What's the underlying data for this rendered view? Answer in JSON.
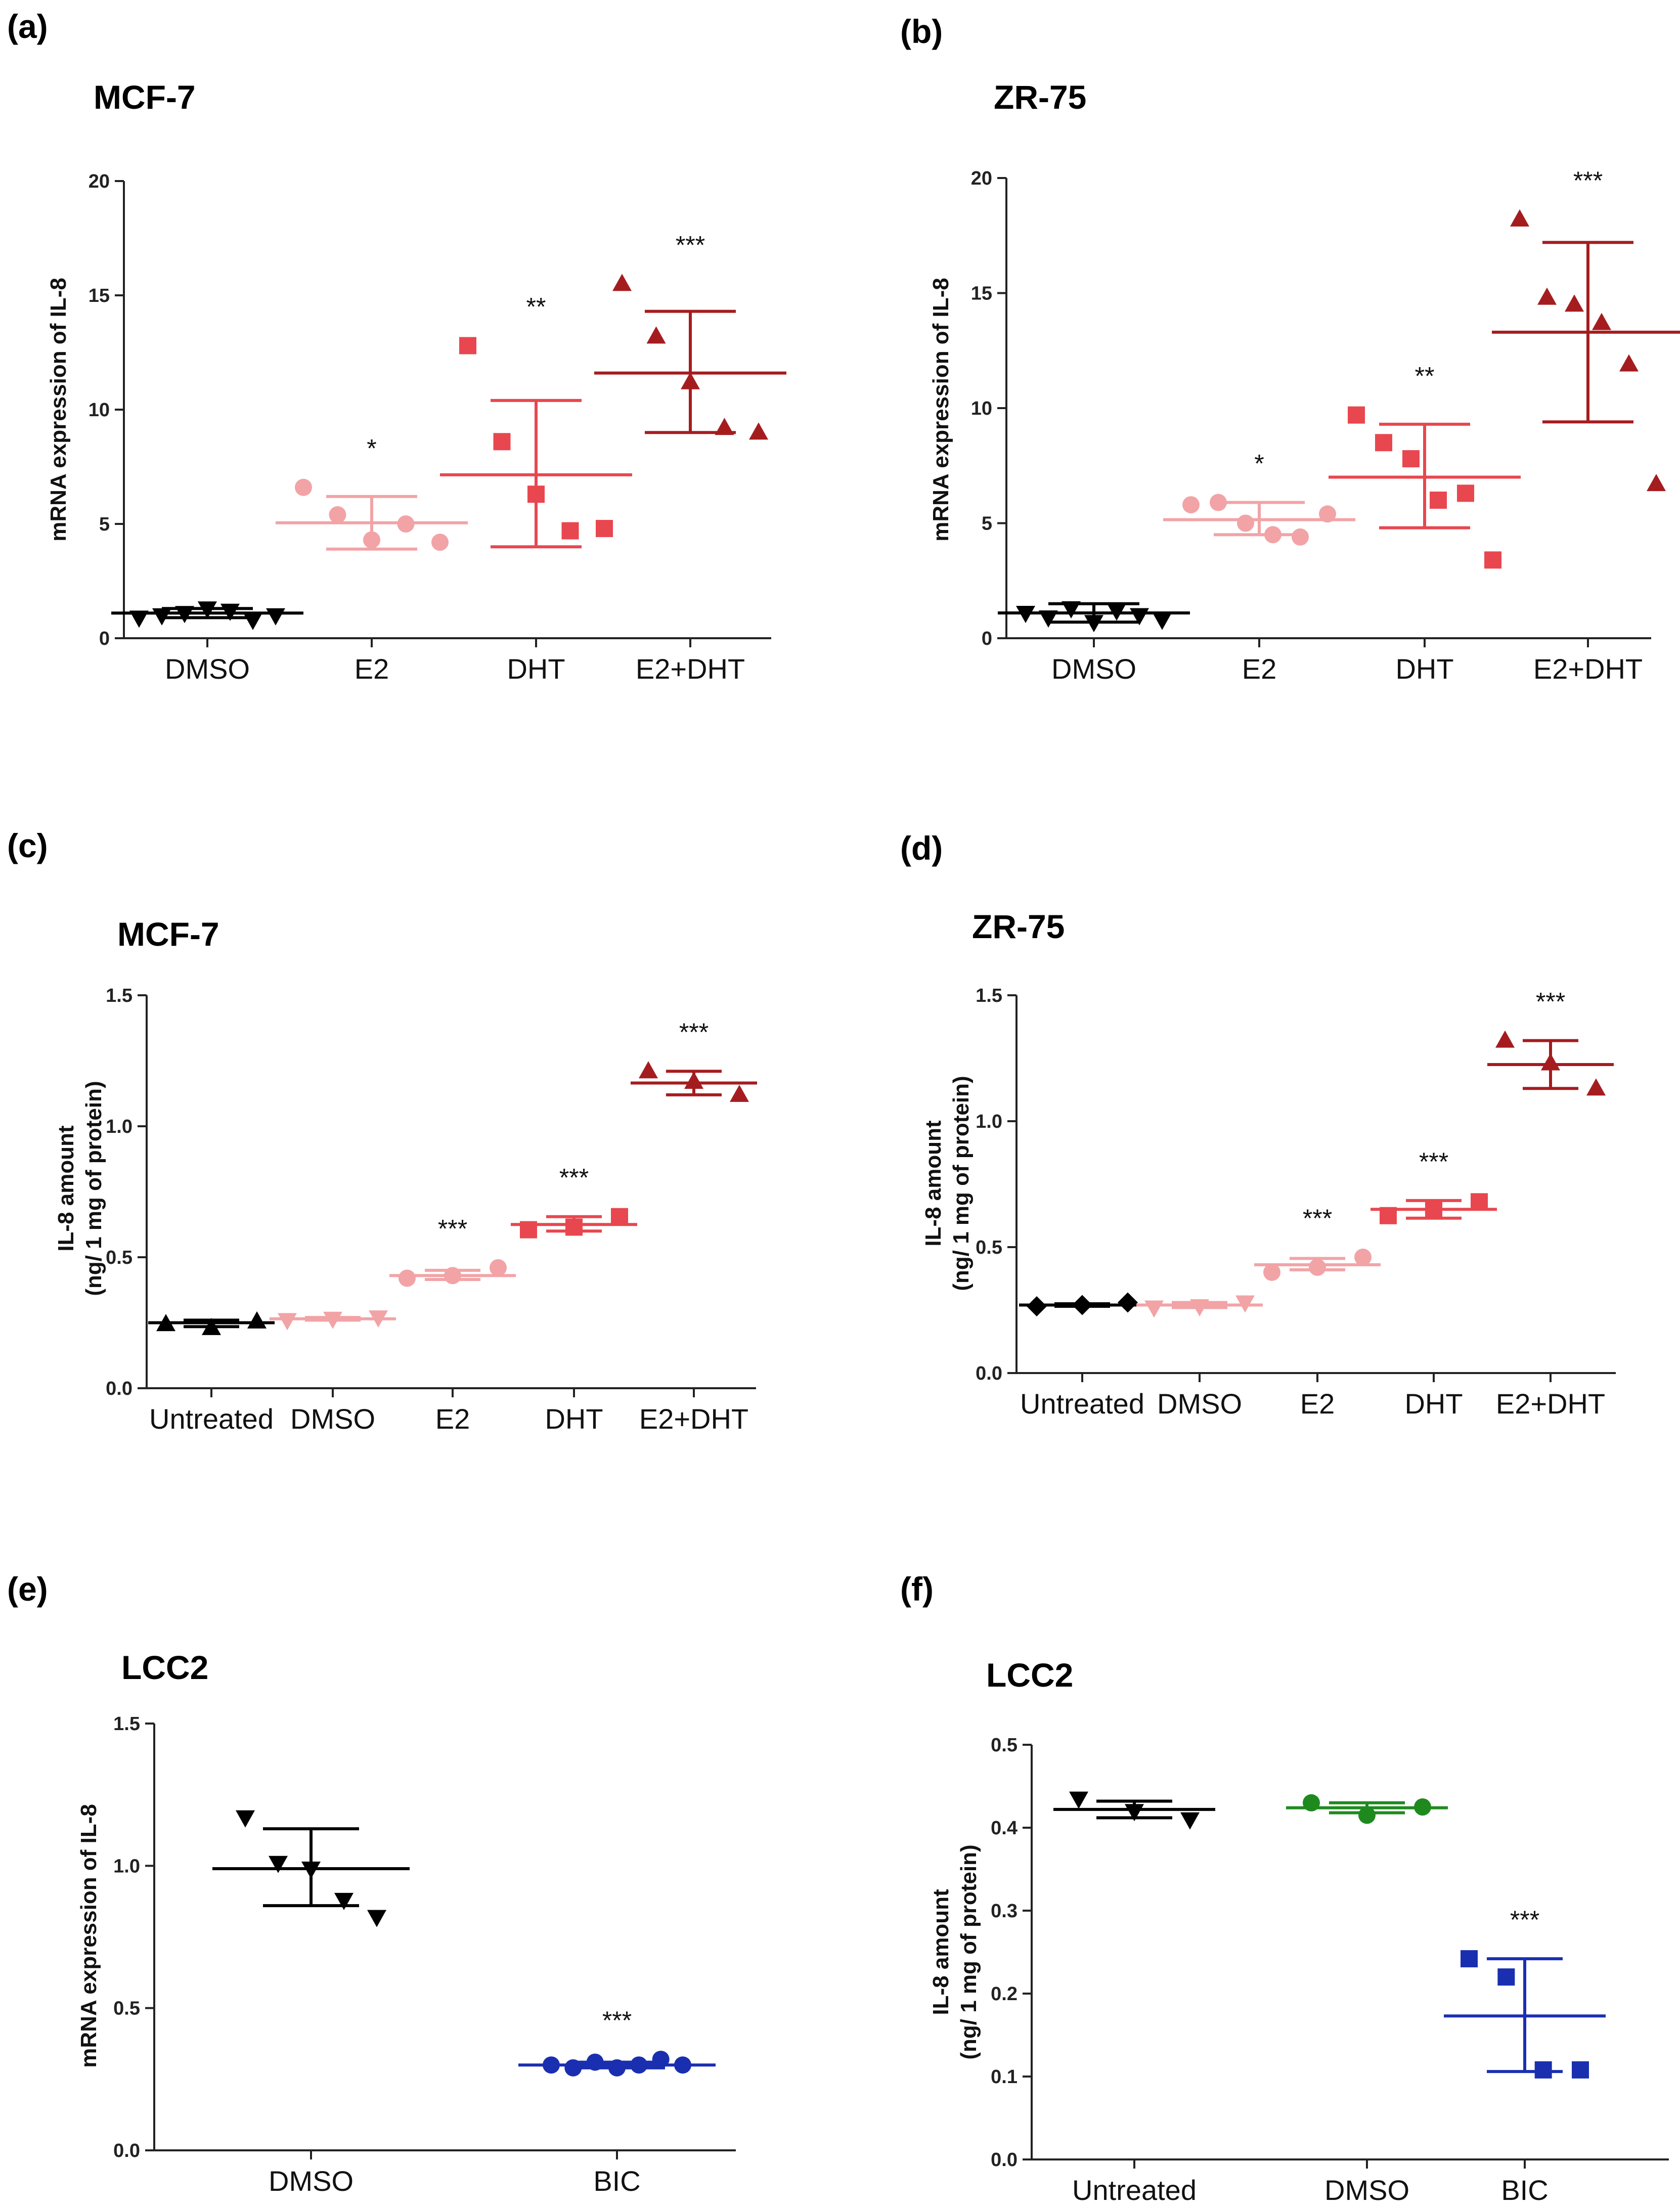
{
  "chart_data": [
    {
      "panel": "(a)",
      "type": "scatter",
      "title": "MCF-7",
      "ylabel": [
        "mRNA expression of IL-8"
      ],
      "ylim": [
        0,
        20
      ],
      "yticks": [
        0,
        5,
        10,
        15,
        20
      ],
      "categories": [
        "DMSO",
        "E2",
        "DHT",
        "E2+DHT"
      ],
      "groups": [
        {
          "name": "DMSO",
          "marker": "triangle-down",
          "color": "#000000",
          "points": [
            0.9,
            1.0,
            1.1,
            1.3,
            1.2,
            0.8,
            1.0
          ],
          "mean": 1.1,
          "upper": 1.3,
          "lower": 0.9,
          "sig": ""
        },
        {
          "name": "E2",
          "marker": "circle",
          "color": "#f2a3a6",
          "points": [
            6.6,
            5.4,
            4.3,
            5.0,
            4.2
          ],
          "mean": 5.05,
          "upper": 6.2,
          "lower": 3.9,
          "sig": "*"
        },
        {
          "name": "DHT",
          "marker": "square",
          "color": "#e8474f",
          "points": [
            12.8,
            8.6,
            6.3,
            4.7,
            4.8
          ],
          "mean": 7.15,
          "upper": 10.4,
          "lower": 4.0,
          "sig": "**"
        },
        {
          "name": "E2+DHT",
          "marker": "triangle-up",
          "color": "#a51c1f",
          "points": [
            15.5,
            13.2,
            11.2,
            9.2,
            9.0
          ],
          "mean": 11.6,
          "upper": 14.3,
          "lower": 9.0,
          "sig": "***"
        }
      ]
    },
    {
      "panel": "(b)",
      "type": "scatter",
      "title": "ZR-75",
      "ylabel": [
        "mRNA expression of IL-8"
      ],
      "ylim": [
        0,
        20
      ],
      "yticks": [
        0,
        5,
        10,
        15,
        20
      ],
      "categories": [
        "DMSO",
        "E2",
        "DHT",
        "E2+DHT"
      ],
      "groups": [
        {
          "name": "DMSO",
          "marker": "triangle-down",
          "color": "#000000",
          "points": [
            1.1,
            0.9,
            1.3,
            0.7,
            1.2,
            1.0,
            0.8
          ],
          "mean": 1.1,
          "upper": 1.5,
          "lower": 0.7,
          "sig": ""
        },
        {
          "name": "E2",
          "marker": "circle",
          "color": "#f2a3a6",
          "points": [
            5.8,
            5.9,
            5.0,
            4.5,
            4.4,
            5.4
          ],
          "mean": 5.15,
          "upper": 5.9,
          "lower": 4.5,
          "sig": "*"
        },
        {
          "name": "DHT",
          "marker": "square",
          "color": "#e8474f",
          "points": [
            9.7,
            8.5,
            7.8,
            6.0,
            6.3,
            3.4
          ],
          "mean": 7.0,
          "upper": 9.3,
          "lower": 4.8,
          "sig": "**"
        },
        {
          "name": "E2+DHT",
          "marker": "triangle-up",
          "color": "#a51c1f",
          "points": [
            18.2,
            14.8,
            14.5,
            13.7,
            11.9,
            6.7
          ],
          "mean": 13.3,
          "upper": 17.2,
          "lower": 9.4,
          "sig": "***"
        }
      ]
    },
    {
      "panel": "(c)",
      "type": "scatter",
      "title": "MCF-7",
      "ylabel": [
        "IL-8 amount",
        "(ng/ 1 mg of protein)"
      ],
      "ylim": [
        0,
        1.5
      ],
      "yticks": [
        0.0,
        0.5,
        1.0,
        1.5
      ],
      "tickDecimals": 1,
      "categories": [
        "Untreated",
        "DMSO",
        "E2",
        "DHT",
        "E2+DHT"
      ],
      "groups": [
        {
          "name": "Untreated",
          "marker": "triangle-up",
          "color": "#000000",
          "points": [
            0.245,
            0.23,
            0.255
          ],
          "mean": 0.25,
          "upper": 0.26,
          "lower": 0.235,
          "sig": ""
        },
        {
          "name": "DMSO",
          "marker": "triangle-down",
          "color": "#f2a3a6",
          "points": [
            0.26,
            0.265,
            0.27
          ],
          "mean": 0.265,
          "upper": 0.27,
          "lower": 0.26,
          "sig": ""
        },
        {
          "name": "E2",
          "marker": "circle",
          "color": "#f2a3a6",
          "points": [
            0.42,
            0.43,
            0.46
          ],
          "mean": 0.43,
          "upper": 0.45,
          "lower": 0.415,
          "sig": "***"
        },
        {
          "name": "DHT",
          "marker": "square",
          "color": "#e8474f",
          "points": [
            0.605,
            0.615,
            0.655
          ],
          "mean": 0.625,
          "upper": 0.655,
          "lower": 0.6,
          "sig": "***"
        },
        {
          "name": "E2+DHT",
          "marker": "triangle-up",
          "color": "#a51c1f",
          "points": [
            1.21,
            1.17,
            1.12
          ],
          "mean": 1.165,
          "upper": 1.21,
          "lower": 1.12,
          "sig": "***"
        }
      ]
    },
    {
      "panel": "(d)",
      "type": "scatter",
      "title": "ZR-75",
      "ylabel": [
        "IL-8 amount",
        "(ng/ 1 mg of protein)"
      ],
      "ylim": [
        0,
        1.5
      ],
      "yticks": [
        0.0,
        0.5,
        1.0,
        1.5
      ],
      "tickDecimals": 1,
      "categories": [
        "Untreated",
        "DMSO",
        "E2",
        "DHT",
        "E2+DHT"
      ],
      "groups": [
        {
          "name": "Untreated",
          "marker": "diamond",
          "color": "#000000",
          "points": [
            0.265,
            0.27,
            0.28
          ],
          "mean": 0.27,
          "upper": 0.275,
          "lower": 0.265,
          "sig": ""
        },
        {
          "name": "DMSO",
          "marker": "triangle-down",
          "color": "#f2a3a6",
          "points": [
            0.26,
            0.265,
            0.28
          ],
          "mean": 0.27,
          "upper": 0.28,
          "lower": 0.26,
          "sig": ""
        },
        {
          "name": "E2",
          "marker": "circle",
          "color": "#f2a3a6",
          "points": [
            0.4,
            0.42,
            0.46
          ],
          "mean": 0.43,
          "upper": 0.455,
          "lower": 0.41,
          "sig": "***"
        },
        {
          "name": "DHT",
          "marker": "square",
          "color": "#e8474f",
          "points": [
            0.625,
            0.65,
            0.68
          ],
          "mean": 0.65,
          "upper": 0.685,
          "lower": 0.615,
          "sig": "***"
        },
        {
          "name": "E2+DHT",
          "marker": "triangle-up",
          "color": "#a51c1f",
          "points": [
            1.32,
            1.23,
            1.13
          ],
          "mean": 1.225,
          "upper": 1.32,
          "lower": 1.13,
          "sig": "***"
        }
      ]
    },
    {
      "panel": "(e)",
      "type": "scatter",
      "title": "LCC2",
      "ylabel": [
        "mRNA expression of IL-8"
      ],
      "ylim": [
        0,
        1.5
      ],
      "yticks": [
        0.0,
        0.5,
        1.0,
        1.5
      ],
      "tickDecimals": 1,
      "categories": [
        "DMSO",
        "BIC"
      ],
      "groups": [
        {
          "name": "DMSO",
          "marker": "triangle-down",
          "color": "#000000",
          "points": [
            1.17,
            1.01,
            0.99,
            0.88,
            0.82
          ],
          "mean": 0.99,
          "upper": 1.13,
          "lower": 0.86,
          "sig": ""
        },
        {
          "name": "BIC",
          "marker": "circle",
          "color": "#1a2fb0",
          "points": [
            0.3,
            0.29,
            0.31,
            0.29,
            0.3,
            0.32,
            0.3
          ],
          "mean": 0.3,
          "upper": 0.31,
          "lower": 0.29,
          "sig": "***"
        }
      ]
    },
    {
      "panel": "(f)",
      "type": "scatter",
      "title": "LCC2",
      "ylabel": [
        "IL-8 amount",
        "(ng/ 1 mg of protein)"
      ],
      "ylim": [
        0,
        0.5
      ],
      "yticks": [
        0.0,
        0.1,
        0.2,
        0.3,
        0.4,
        0.5
      ],
      "tickDecimals": 1,
      "categories": [
        "Untreated",
        "DMSO",
        "BIC"
      ],
      "groups": [
        {
          "name": "Untreated",
          "marker": "triangle-down",
          "color": "#000000",
          "points": [
            0.435,
            0.42,
            0.41
          ],
          "mean": 0.422,
          "upper": 0.432,
          "lower": 0.412,
          "sig": ""
        },
        {
          "name": "DMSO",
          "marker": "circle",
          "color": "#1e8a1e",
          "points": [
            0.43,
            0.415,
            0.425
          ],
          "mean": 0.424,
          "upper": 0.43,
          "lower": 0.418,
          "sig": ""
        },
        {
          "name": "BIC",
          "marker": "square",
          "color": "#1a2fb0",
          "points": [
            0.242,
            0.22,
            0.108,
            0.108
          ],
          "mean": 0.173,
          "upper": 0.242,
          "lower": 0.106,
          "sig": "***"
        }
      ]
    }
  ]
}
